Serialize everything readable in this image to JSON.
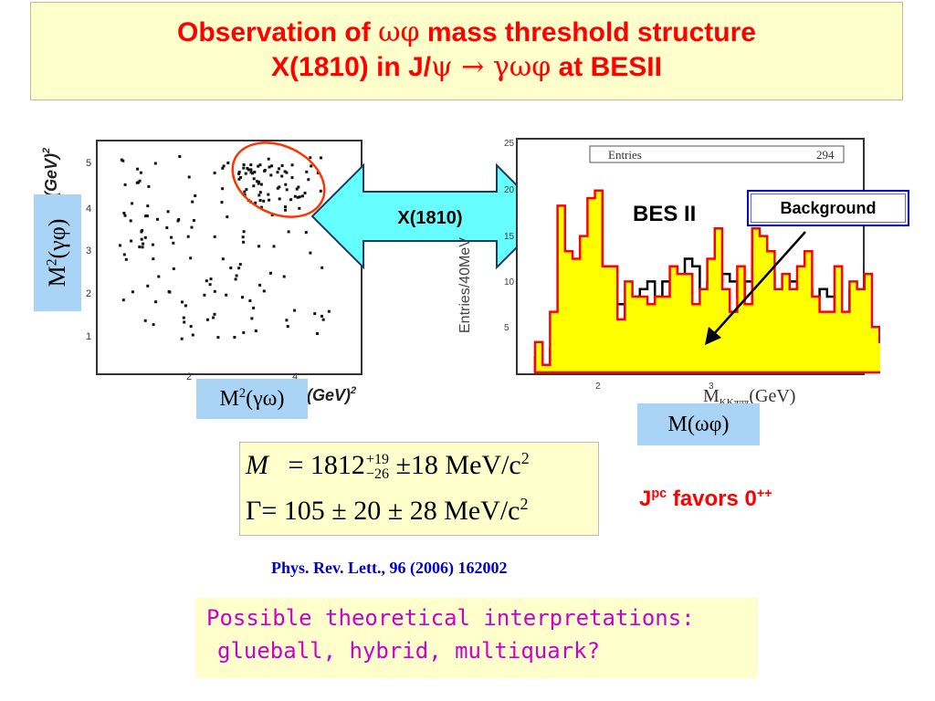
{
  "title": {
    "line1": {
      "prefix": "Observation of ",
      "symbols": "ωφ",
      "suffix": " mass threshold structure"
    },
    "line2": {
      "prefix": "X(1810) in J/",
      "psi": "ψ",
      "arrow": " → ",
      "final_state": "γωφ",
      "suffix": " at BESII"
    }
  },
  "scatter_plot": {
    "y_axis_title": "(GeV)",
    "y_axis_title_sup": "2",
    "x_axis_title": "(GeV)",
    "x_axis_title_sup": "2",
    "y_ticks": [
      "5",
      "4",
      "3",
      "2",
      "1"
    ],
    "x_ticks": [
      "2",
      "4"
    ]
  },
  "label_y": {
    "text": "M",
    "sup": "2",
    "rest": "(γφ)"
  },
  "label_x": {
    "text": "M",
    "sup": "2",
    "rest": "(γω)"
  },
  "label_mass": {
    "text": "M(ωφ)"
  },
  "arrow_label": "X(1810)",
  "histogram": {
    "y_axis_title": "Entries/40MeV",
    "y_ticks": [
      "25",
      "20",
      "15",
      "10",
      "5"
    ],
    "x_ticks": [
      "2",
      "3"
    ],
    "x_axis_title": "M",
    "x_axis_sub": "KKπππ",
    "x_axis_unit": "(GeV)",
    "stats_label": "Entries",
    "stats_value": "294",
    "colors": {
      "data_fill": "#ffff00",
      "data_line": "#ff0000",
      "background_line": "#000000"
    }
  },
  "bes_label": "BES II",
  "background_label": "Background",
  "formula": {
    "mass_symbol": "M",
    "mass_value": "1812",
    "mass_up": "+19",
    "mass_down": "−26",
    "mass_rest": "±18 MeV/c",
    "mass_exp": "2",
    "width_symbol": "Γ",
    "width_rest": "= 105 ± 20 ± 28 MeV/c",
    "width_exp": "2",
    "equals": "="
  },
  "jpc": {
    "prefix": "J",
    "sup": "pc",
    "middle": " favors 0",
    "sup2": "++"
  },
  "reference": "Phys. Rev. Lett., 96 (2006) 162002",
  "interpretations": {
    "line1": "Possible theoretical interpretations:",
    "line2": "glueball, hybrid, multiquark?"
  }
}
